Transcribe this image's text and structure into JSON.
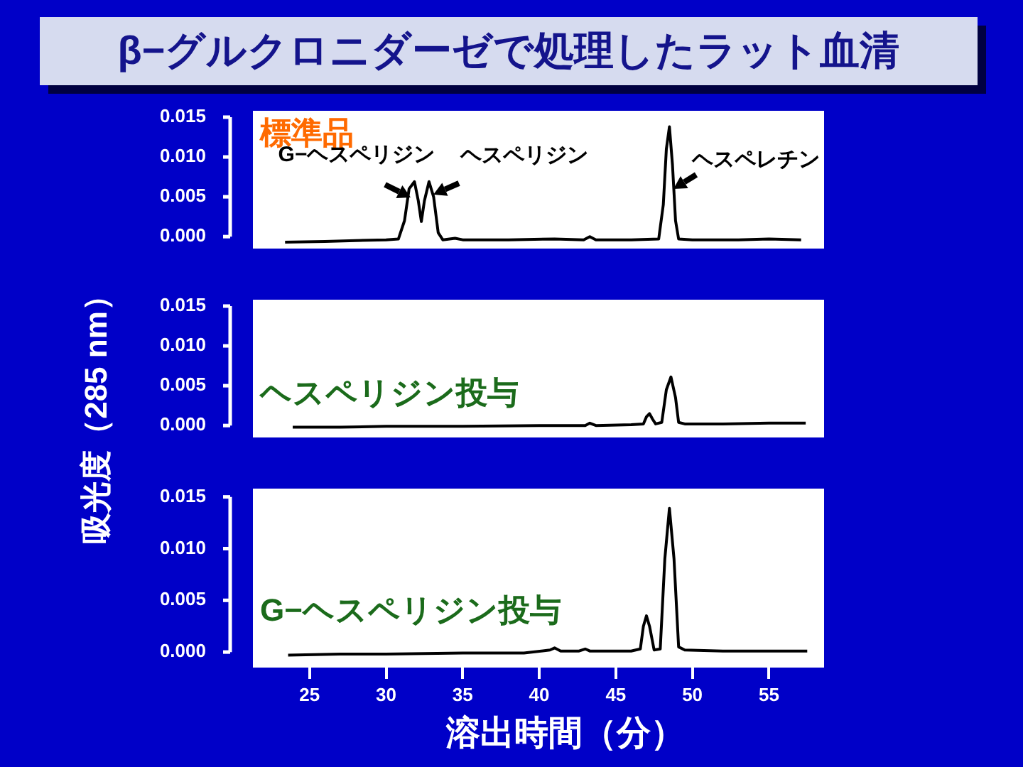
{
  "chart_data": [
    {
      "type": "line",
      "title": "β−グルクロニダーゼで処理したラット血清",
      "annotations": [
        "標準品",
        {
          "text": "G−ヘスペリジン",
          "x": 31.6,
          "y": 0.005
        },
        {
          "text": "ヘスペリジン",
          "x": 33.1,
          "y": 0.0053
        },
        {
          "text": "ヘスペレチン",
          "x": 48.75,
          "y": 0.006
        }
      ],
      "marker": "none",
      "tick_labels": "y",
      "xlim": [
        21.3,
        58.6
      ],
      "ylim": [
        -0.0015,
        0.0158
      ],
      "yticks": [
        {
          "value": 0,
          "label": "0.000"
        },
        {
          "value": 0.005,
          "label": "0.005"
        },
        {
          "value": 0.01,
          "label": "0.010"
        },
        {
          "value": 0.015,
          "label": "0.015"
        }
      ],
      "series": [
        {
          "color": "#000000",
          "x": [
            23.4,
            26,
            28,
            30,
            30.8,
            31.2,
            31.5,
            31.85,
            32.1,
            32.3,
            32.5,
            32.8,
            33.1,
            33.4,
            33.7,
            34.5,
            35,
            38,
            41,
            42.9,
            43.3,
            43.7,
            46,
            47.8,
            48.1,
            48.3,
            48.5,
            48.7,
            48.9,
            49.1,
            50,
            53,
            55,
            57.1
          ],
          "values": [
            -0.0007,
            -0.0006,
            -0.0005,
            -0.0004,
            -0.0003,
            0.002,
            0.006,
            0.0069,
            0.0045,
            0.0019,
            0.0045,
            0.0069,
            0.005,
            0.0005,
            -0.0004,
            -0.0002,
            -0.0004,
            -0.0004,
            -0.0003,
            -0.0004,
            0,
            -0.0004,
            -0.0004,
            -0.0003,
            0.004,
            0.011,
            0.0138,
            0.009,
            0.002,
            -0.0003,
            -0.0004,
            -0.0004,
            -0.0003,
            -0.0004
          ]
        }
      ]
    },
    {
      "type": "line",
      "ylabel": "吸光度（285 nm）",
      "annotations": [
        "ヘスペリジン投与"
      ],
      "marker": "none",
      "tick_labels": "y",
      "xlim": [
        21.3,
        58.6
      ],
      "ylim": [
        -0.0015,
        0.0158
      ],
      "yticks": [
        {
          "value": 0,
          "label": "0.000"
        },
        {
          "value": 0.005,
          "label": "0.005"
        },
        {
          "value": 0.01,
          "label": "0.010"
        },
        {
          "value": 0.015,
          "label": "0.015"
        }
      ],
      "series": [
        {
          "color": "#000000",
          "x": [
            23.9,
            27,
            30,
            35,
            40,
            43,
            43.3,
            43.7,
            46,
            46.8,
            47,
            47.2,
            47.4,
            47.6,
            48,
            48.3,
            48.6,
            48.9,
            49.1,
            49.5,
            52,
            55,
            57.4
          ],
          "values": [
            -0.0002,
            -0.0002,
            -0.0001,
            -0.0001,
            0,
            0,
            0.0003,
            0,
            0.0001,
            0.0002,
            0.0011,
            0.0015,
            0.0008,
            0.0002,
            0.0004,
            0.0045,
            0.0061,
            0.0035,
            0.0004,
            0.0002,
            0.0002,
            0.0003,
            0.0003
          ]
        }
      ]
    },
    {
      "type": "line",
      "xlabel": "溶出時間（分）",
      "annotations": [
        "G−ヘスペリジン投与"
      ],
      "marker": "none",
      "xlim": [
        21.3,
        58.6
      ],
      "xticks": [
        25,
        30,
        35,
        40,
        45,
        50,
        55
      ],
      "ylim": [
        -0.0015,
        0.0158
      ],
      "yticks": [
        {
          "value": 0,
          "label": "0.000"
        },
        {
          "value": 0.005,
          "label": "0.005"
        },
        {
          "value": 0.01,
          "label": "0.010"
        },
        {
          "value": 0.015,
          "label": "0.015"
        }
      ],
      "series": [
        {
          "color": "#000000",
          "x": [
            23.6,
            27,
            30,
            35,
            39,
            40.7,
            41,
            41.4,
            42.6,
            43,
            43.3,
            46,
            46.6,
            46.8,
            47,
            47.2,
            47.5,
            47.9,
            48.2,
            48.5,
            48.8,
            49.1,
            49.5,
            52,
            55,
            57.5
          ],
          "values": [
            -0.0003,
            -0.0002,
            -0.0002,
            -0.0001,
            -0.0001,
            0.0002,
            0.0004,
            0.0001,
            0.0001,
            0.0003,
            0.0001,
            0.0001,
            0.0003,
            0.0025,
            0.0035,
            0.0025,
            0.0002,
            0.0003,
            0.009,
            0.0139,
            0.009,
            0.0005,
            0.0002,
            0.0001,
            0.0001,
            0.0001
          ]
        }
      ]
    }
  ]
}
